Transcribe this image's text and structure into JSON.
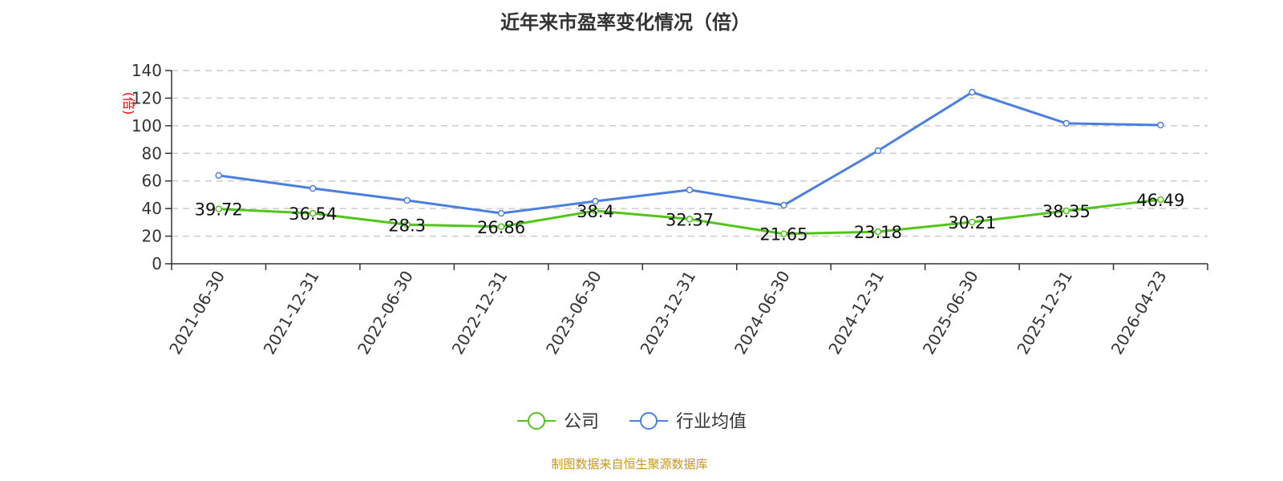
{
  "chart_data": {
    "type": "line",
    "title": "近年来市盈率变化情况（倍）",
    "ylabel": "(倍)",
    "xlabel": "",
    "ylim": [
      0,
      140
    ],
    "yticks": [
      0,
      20,
      40,
      60,
      80,
      100,
      120,
      140
    ],
    "grid": true,
    "legend_placement": "bottom-center",
    "categories": [
      "2021-06-30",
      "2021-12-31",
      "2022-06-30",
      "2022-12-31",
      "2023-06-30",
      "2023-12-31",
      "2024-06-30",
      "2024-12-31",
      "2025-06-30",
      "2025-12-31",
      "2026-04-23"
    ],
    "series": [
      {
        "name": "公司",
        "color": "#52c41a",
        "values": [
          39.72,
          36.54,
          28.3,
          26.86,
          38.4,
          32.37,
          21.65,
          23.18,
          30.21,
          38.35,
          46.49
        ],
        "labels": [
          "39.72",
          "36.54",
          "28.3",
          "26.86",
          "38.4",
          "32.37",
          "21.65",
          "23.18",
          "30.21",
          "38.35",
          "46.49"
        ]
      },
      {
        "name": "行业均值",
        "color": "#4a7fe0",
        "values": [
          64,
          54.6,
          45.9,
          36.6,
          45.3,
          53.5,
          42.4,
          81.9,
          124.3,
          101.7,
          100.5
        ]
      }
    ]
  },
  "source": "制图数据来自恒生聚源数据库"
}
